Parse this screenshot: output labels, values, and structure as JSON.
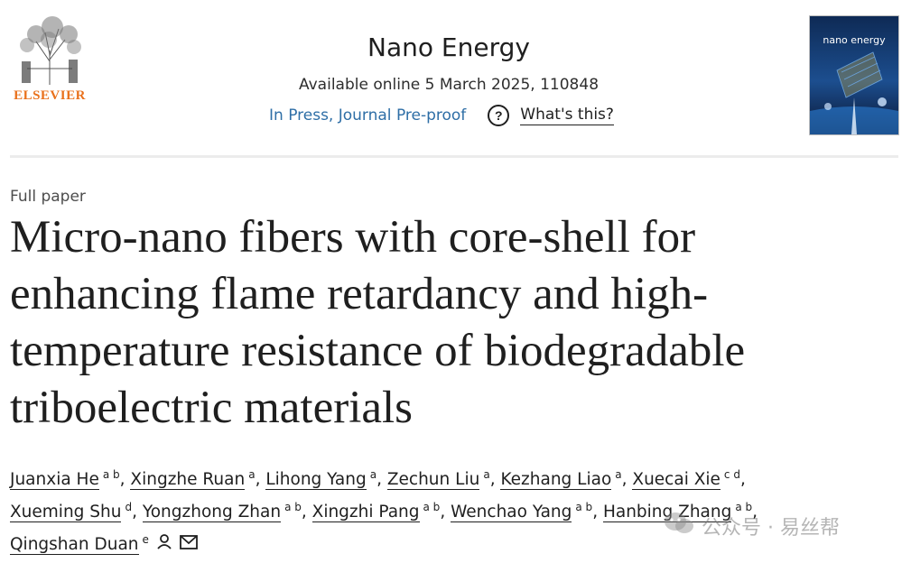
{
  "publisher": {
    "logo_text": "ELSEVIER"
  },
  "journal": {
    "name": "Nano Energy",
    "available": "Available online 5 March 2025, 110848",
    "status_link": "In Press, Journal Pre-proof",
    "help_link": "What's this?",
    "cover_text": "nano energy"
  },
  "article": {
    "type": "Full paper",
    "title": "Micro-nano fibers with core-shell for enhancing flame retardancy and high-temperature resistance of biodegradable triboelectric materials"
  },
  "authors": [
    {
      "name": "Juanxia He",
      "aff": "a b"
    },
    {
      "name": "Xingzhe Ruan",
      "aff": "a"
    },
    {
      "name": "Lihong Yang",
      "aff": "a"
    },
    {
      "name": "Zechun Liu",
      "aff": "a"
    },
    {
      "name": "Kezhang Liao",
      "aff": "a"
    },
    {
      "name": "Xuecai Xie",
      "aff": "c d"
    },
    {
      "name": "Xueming Shu",
      "aff": "d"
    },
    {
      "name": "Yongzhong Zhan",
      "aff": "a b"
    },
    {
      "name": "Xingzhi Pang",
      "aff": "a b"
    },
    {
      "name": "Wenchao Yang",
      "aff": "a b"
    },
    {
      "name": "Hanbing Zhang",
      "aff": "a b"
    },
    {
      "name": "Qingshan Duan",
      "aff": "e"
    }
  ],
  "watermark": {
    "text": "公众号 · 易丝帮"
  },
  "icons": {
    "help": "question-circle-icon",
    "person": "person-icon",
    "mail": "mail-icon",
    "wechat": "wechat-icon"
  },
  "colors": {
    "elsevier_orange": "#e9711c",
    "link_blue": "#2e6ea6"
  }
}
